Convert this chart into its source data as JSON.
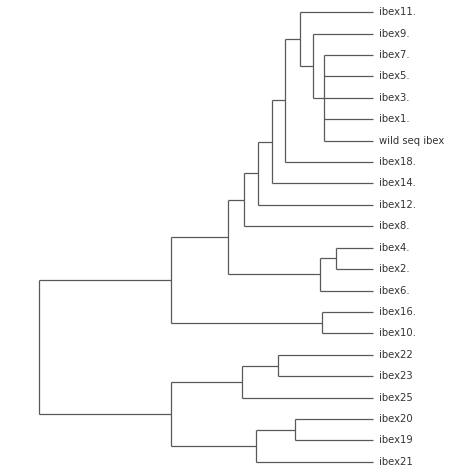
{
  "taxa": [
    "ibex11.",
    "ibex9.",
    "ibex7.",
    "ibex5.",
    "ibex3.",
    "ibex1.",
    "wild seq ibex",
    "ibex18.",
    "ibex14.",
    "ibex12.",
    "ibex8.",
    "ibex4.",
    "ibex2.",
    "ibex6.",
    "ibex16.",
    "ibex10.",
    "ibex22",
    "ibex23",
    "ibex25",
    "ibex20",
    "ibex19",
    "ibex21"
  ],
  "background": "#ffffff",
  "line_color": "#595959",
  "text_color": "#333333",
  "font_size": 7.2,
  "lw": 0.9
}
